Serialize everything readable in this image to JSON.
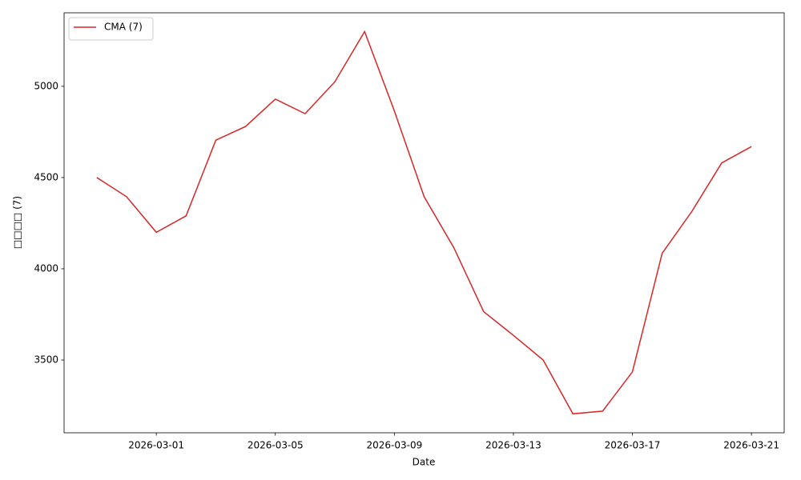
{
  "chart_data": {
    "type": "line",
    "x_label": "Date",
    "y_label": "□□□□ (7)",
    "x": [
      "2026-02-27",
      "2026-02-28",
      "2026-03-01",
      "2026-03-02",
      "2026-03-03",
      "2026-03-04",
      "2026-03-05",
      "2026-03-06",
      "2026-03-07",
      "2026-03-08",
      "2026-03-09",
      "2026-03-10",
      "2026-03-11",
      "2026-03-12",
      "2026-03-13",
      "2026-03-14",
      "2026-03-15",
      "2026-03-16",
      "2026-03-17",
      "2026-03-18",
      "2026-03-19",
      "2026-03-20",
      "2026-03-21"
    ],
    "series": [
      {
        "name": "CMA (7)",
        "color": "#d62728",
        "values": [
          4500,
          4395,
          4200,
          4290,
          4705,
          4780,
          4930,
          4850,
          5025,
          5300,
          4865,
          4395,
          4115,
          3765,
          3635,
          3500,
          3205,
          3220,
          3435,
          4085,
          4315,
          4580,
          4670
        ]
      }
    ],
    "xticks": [
      "2026-03-01",
      "2026-03-05",
      "2026-03-09",
      "2026-03-13",
      "2026-03-17",
      "2026-03-21"
    ],
    "ylim": [
      3101,
      5403
    ],
    "yticks": [
      3500,
      4000,
      4500,
      5000
    ],
    "legend": "upper left",
    "grid": false
  }
}
